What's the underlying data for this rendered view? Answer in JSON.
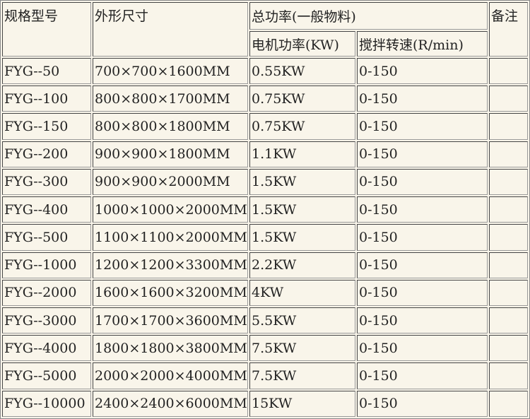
{
  "headers": {
    "model": "规格型号",
    "size": "外形尺寸",
    "power_group": "总功率(一般物料)",
    "motor": "电机功率(KW)",
    "speed": "搅拌转速(R/min)",
    "remark": "备注"
  },
  "rows": [
    {
      "model": "FYG--50",
      "size": "700×700×1600MM",
      "motor": "0.55KW",
      "speed": "0-150",
      "remark": ""
    },
    {
      "model": "FYG--100",
      "size": "800×800×1700MM",
      "motor": "0.75KW",
      "speed": "0-150",
      "remark": ""
    },
    {
      "model": "FYG--150",
      "size": "800×800×1800MM",
      "motor": "0.75KW",
      "speed": "0-150",
      "remark": ""
    },
    {
      "model": "FYG--200",
      "size": "900×900×1800MM",
      "motor": "1.1KW",
      "speed": "0-150",
      "remark": ""
    },
    {
      "model": "FYG--300",
      "size": "900×900×2000MM",
      "motor": "1.5KW",
      "speed": "0-150",
      "remark": ""
    },
    {
      "model": "FYG--400",
      "size": "1000×1000×2000MM",
      "motor": "1.5KW",
      "speed": "0-150",
      "remark": ""
    },
    {
      "model": "FYG--500",
      "size": "1100×1100×2000MM",
      "motor": "1.5KW",
      "speed": "0-150",
      "remark": ""
    },
    {
      "model": "FYG--1000",
      "size": "1200×1200×3300MM",
      "motor": "2.2KW",
      "speed": "0-150",
      "remark": ""
    },
    {
      "model": "FYG--2000",
      "size": "1600×1600×3200MM",
      "motor": "4KW",
      "speed": "0-150",
      "remark": ""
    },
    {
      "model": "FYG--3000",
      "size": "1700×1700×3600MM",
      "motor": "5.5KW",
      "speed": "0-150",
      "remark": ""
    },
    {
      "model": "FYG--4000",
      "size": "1800×1800×3800MM",
      "motor": "7.5KW",
      "speed": "0-150",
      "remark": ""
    },
    {
      "model": "FYG--5000",
      "size": "2000×2000×4000MM",
      "motor": "7.5KW",
      "speed": "0-150",
      "remark": ""
    },
    {
      "model": "FYG--10000",
      "size": "2400×2400×6000MM",
      "motor": "15KW",
      "speed": "0-150",
      "remark": ""
    }
  ]
}
